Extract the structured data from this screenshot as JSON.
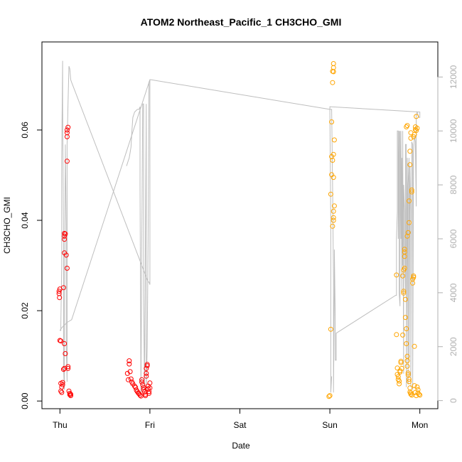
{
  "chart_data": {
    "type": "scatter",
    "title": "ATOM2 Northeast_Pacific_1 CH3CHO_GMI",
    "xlabel": "Date",
    "ylabel": "CH3CHO_GMI",
    "x_ticks": [
      {
        "label": "Thu",
        "value": 0
      },
      {
        "label": "Fri",
        "value": 1
      },
      {
        "label": "Sat",
        "value": 2
      },
      {
        "label": "Sun",
        "value": 3
      },
      {
        "label": "Mon",
        "value": 4
      }
    ],
    "xlim": [
      -0.2,
      4.2
    ],
    "ylim": [
      -0.0017,
      0.0795
    ],
    "y_ticks": [
      "0.00",
      "0.02",
      "0.04",
      "0.06"
    ],
    "y_tick_values": [
      0,
      0.02,
      0.04,
      0.06
    ],
    "y2lim": [
      -300,
      13300
    ],
    "y2_ticks": [
      "0",
      "2000",
      "4000",
      "6000",
      "8000",
      "10000",
      "12000"
    ],
    "y2_tick_values": [
      0,
      2000,
      4000,
      6000,
      8000,
      10000,
      12000
    ],
    "colors": {
      "series_red": "#ff0000",
      "series_orange": "#ffa500",
      "altitude": "#bebebe"
    },
    "series": [
      {
        "color": "#ff0000",
        "points": [
          [
            -0.01,
            0.0243
          ],
          [
            -0.01,
            0.0238
          ],
          [
            0.0,
            0.0248
          ],
          [
            -0.005,
            0.0229
          ],
          [
            0.0,
            0.0134
          ],
          [
            0.01,
            0.0133
          ],
          [
            0.01,
            0.0039
          ],
          [
            0.02,
            0.0031
          ],
          [
            0.01,
            0.0022
          ],
          [
            0.02,
            0.0019
          ],
          [
            0.03,
            0.0036
          ],
          [
            0.03,
            0.0041
          ],
          [
            0.04,
            0.007
          ],
          [
            0.05,
            0.0072
          ],
          [
            0.05,
            0.0127
          ],
          [
            0.06,
            0.0105
          ],
          [
            0.04,
            0.0251
          ],
          [
            0.05,
            0.0328
          ],
          [
            0.05,
            0.0365
          ],
          [
            0.05,
            0.0371
          ],
          [
            0.05,
            0.0358
          ],
          [
            0.06,
            0.037
          ],
          [
            0.07,
            0.0323
          ],
          [
            0.08,
            0.0294
          ],
          [
            0.08,
            0.0531
          ],
          [
            0.08,
            0.0585
          ],
          [
            0.08,
            0.0594
          ],
          [
            0.08,
            0.06
          ],
          [
            0.09,
            0.0606
          ],
          [
            0.09,
            0.0072
          ],
          [
            0.09,
            0.0076
          ],
          [
            0.1,
            0.0022
          ],
          [
            0.11,
            0.0017
          ],
          [
            0.11,
            0.0014
          ],
          [
            0.12,
            0.0012
          ],
          [
            0.12,
            0.0015
          ],
          [
            0.75,
            0.0061
          ],
          [
            0.76,
            0.0047
          ],
          [
            0.77,
            0.0082
          ],
          [
            0.77,
            0.0089
          ],
          [
            0.78,
            0.0065
          ],
          [
            0.79,
            0.0049
          ],
          [
            0.8,
            0.0042
          ],
          [
            0.81,
            0.0038
          ],
          [
            0.83,
            0.0033
          ],
          [
            0.84,
            0.003
          ],
          [
            0.85,
            0.0024
          ],
          [
            0.86,
            0.0021
          ],
          [
            0.87,
            0.0018
          ],
          [
            0.88,
            0.0016
          ],
          [
            0.89,
            0.0013
          ],
          [
            0.9,
            0.0011
          ],
          [
            0.91,
            0.0047
          ],
          [
            0.91,
            0.0042
          ],
          [
            0.92,
            0.0036
          ],
          [
            0.93,
            0.003
          ],
          [
            0.93,
            0.0025
          ],
          [
            0.94,
            0.002
          ],
          [
            0.95,
            0.0015
          ],
          [
            0.95,
            0.0012
          ],
          [
            0.96,
            0.0055
          ],
          [
            0.96,
            0.0061
          ],
          [
            0.96,
            0.0072
          ],
          [
            0.97,
            0.0078
          ],
          [
            0.97,
            0.0081
          ],
          [
            0.98,
            0.0033
          ],
          [
            0.98,
            0.0027
          ],
          [
            0.99,
            0.0021
          ],
          [
            0.99,
            0.0017
          ],
          [
            1.0,
            0.0029
          ],
          [
            1.0,
            0.004
          ]
        ]
      },
      {
        "color": "#ffa500",
        "points": [
          [
            2.99,
            0.001
          ],
          [
            3.0,
            0.0012
          ],
          [
            3.01,
            0.0159
          ],
          [
            3.01,
            0.0458
          ],
          [
            3.02,
            0.0501
          ],
          [
            3.02,
            0.0541
          ],
          [
            3.03,
            0.0533
          ],
          [
            3.04,
            0.0546
          ],
          [
            3.04,
            0.0495
          ],
          [
            3.03,
            0.0387
          ],
          [
            3.04,
            0.0406
          ],
          [
            3.04,
            0.04
          ],
          [
            3.04,
            0.042
          ],
          [
            3.05,
            0.0432
          ],
          [
            3.05,
            0.0578
          ],
          [
            3.02,
            0.0618
          ],
          [
            3.03,
            0.0705
          ],
          [
            3.03,
            0.073
          ],
          [
            3.04,
            0.0729
          ],
          [
            3.04,
            0.0738
          ],
          [
            3.04,
            0.0747
          ],
          [
            3.74,
            0.0279
          ],
          [
            3.74,
            0.0147
          ],
          [
            3.75,
            0.0073
          ],
          [
            3.75,
            0.0059
          ],
          [
            3.76,
            0.0054
          ],
          [
            3.76,
            0.0048
          ],
          [
            3.77,
            0.0044
          ],
          [
            3.77,
            0.0038
          ],
          [
            3.78,
            0.0064
          ],
          [
            3.78,
            0.0067
          ],
          [
            3.79,
            0.0085
          ],
          [
            3.79,
            0.0088
          ],
          [
            3.8,
            0.0072
          ],
          [
            3.81,
            0.0277
          ],
          [
            3.81,
            0.0146
          ],
          [
            3.82,
            0.0239
          ],
          [
            3.82,
            0.0243
          ],
          [
            3.82,
            0.029
          ],
          [
            3.83,
            0.0294
          ],
          [
            3.83,
            0.032
          ],
          [
            3.83,
            0.033
          ],
          [
            3.83,
            0.0336
          ],
          [
            3.84,
            0.0225
          ],
          [
            3.84,
            0.0185
          ],
          [
            3.85,
            0.016
          ],
          [
            3.85,
            0.0127
          ],
          [
            3.86,
            0.0099
          ],
          [
            3.86,
            0.0089
          ],
          [
            3.86,
            0.0077
          ],
          [
            3.87,
            0.0062
          ],
          [
            3.87,
            0.0058
          ],
          [
            3.88,
            0.0048
          ],
          [
            3.88,
            0.0043
          ],
          [
            3.89,
            0.0029
          ],
          [
            3.89,
            0.002
          ],
          [
            3.9,
            0.0018
          ],
          [
            3.9,
            0.0015
          ],
          [
            3.91,
            0.0013
          ],
          [
            3.86,
            0.0365
          ],
          [
            3.87,
            0.0373
          ],
          [
            3.88,
            0.0395
          ],
          [
            3.88,
            0.0443
          ],
          [
            3.89,
            0.0523
          ],
          [
            3.89,
            0.0553
          ],
          [
            3.9,
            0.0582
          ],
          [
            3.9,
            0.0594
          ],
          [
            3.91,
            0.0467
          ],
          [
            3.91,
            0.0463
          ],
          [
            3.92,
            0.0261
          ],
          [
            3.92,
            0.027
          ],
          [
            3.93,
            0.0274
          ],
          [
            3.93,
            0.0277
          ],
          [
            3.94,
            0.0121
          ],
          [
            3.94,
            0.059
          ],
          [
            3.95,
            0.0601
          ],
          [
            3.95,
            0.0607
          ],
          [
            3.96,
            0.0599
          ],
          [
            3.96,
            0.063
          ],
          [
            3.97,
            0.0604
          ],
          [
            3.97,
            0.0031
          ],
          [
            3.98,
            0.0025
          ],
          [
            3.98,
            0.0018
          ],
          [
            3.99,
            0.0015
          ],
          [
            4.0,
            0.0013
          ],
          [
            3.94,
            0.0034
          ],
          [
            3.95,
            0.0019
          ],
          [
            3.96,
            0.0012
          ],
          [
            3.85,
            0.0607
          ],
          [
            3.86,
            0.061
          ],
          [
            3.93,
            0.0585
          ]
        ]
      }
    ],
    "altitude_series": {
      "color": "#bebebe",
      "segments": [
        [
          [
            0.0,
            2600
          ],
          [
            0.01,
            2600
          ],
          [
            0.01,
            2800
          ],
          [
            0.02,
            5000
          ],
          [
            0.02,
            9000
          ],
          [
            0.03,
            12600
          ],
          [
            0.03,
            11000
          ],
          [
            0.04,
            6000
          ],
          [
            0.04,
            1200
          ],
          [
            0.05,
            400
          ],
          [
            0.05,
            3800
          ],
          [
            0.06,
            9000
          ],
          [
            0.06,
            9500
          ],
          [
            0.07,
            6500
          ],
          [
            0.07,
            2000
          ],
          [
            0.08,
            700
          ],
          [
            0.08,
            9500
          ],
          [
            0.09,
            11000
          ],
          [
            0.1,
            12400
          ],
          [
            0.11,
            12300
          ],
          [
            0.12,
            11900
          ],
          [
            0.13,
            11800
          ],
          [
            0.98,
            4400
          ],
          [
            0.99,
            4400
          ],
          [
            1.0,
            4300
          ],
          [
            1.0,
            10500
          ],
          [
            1.0,
            11900
          ],
          [
            0.99,
            11800
          ],
          [
            0.98,
            6000
          ],
          [
            0.97,
            2000
          ],
          [
            0.96,
            400
          ],
          [
            0.96,
            11000
          ],
          [
            0.95,
            6000
          ],
          [
            0.94,
            400
          ],
          [
            0.93,
            4000
          ],
          [
            0.93,
            11000
          ],
          [
            0.92,
            11000
          ],
          [
            0.91,
            6000
          ],
          [
            0.9,
            300
          ],
          [
            0.89,
            8000
          ],
          [
            0.89,
            10900
          ],
          [
            0.88,
            10800
          ],
          [
            0.87,
            10800
          ],
          [
            0.86,
            10800
          ],
          [
            0.83,
            10700
          ],
          [
            0.81,
            10500
          ],
          [
            0.8,
            10000
          ],
          [
            0.79,
            9400
          ],
          [
            0.78,
            9200
          ],
          [
            0.77,
            9000
          ],
          [
            0.76,
            8900
          ],
          [
            0.75,
            8800
          ],
          [
            0.74,
            8700
          ]
        ],
        [
          [
            0.0,
            2600
          ],
          [
            0.02,
            2700
          ],
          [
            0.05,
            2800
          ],
          [
            0.08,
            2900
          ],
          [
            0.13,
            3000
          ],
          [
            1.0,
            11900
          ],
          [
            1.01,
            11900
          ],
          [
            3.0,
            10800
          ],
          [
            3.02,
            10800
          ],
          [
            3.03,
            8000
          ],
          [
            3.04,
            4500
          ],
          [
            3.04,
            300
          ],
          [
            3.05,
            4000
          ],
          [
            3.05,
            5600
          ],
          [
            3.06,
            3000
          ],
          [
            3.06,
            1500
          ],
          [
            3.07,
            1500
          ],
          [
            3.07,
            2500
          ],
          [
            3.73,
            3900
          ],
          [
            3.74,
            3900
          ],
          [
            3.74,
            6000
          ],
          [
            3.75,
            7000
          ],
          [
            3.75,
            10000
          ],
          [
            3.76,
            10000
          ],
          [
            3.76,
            6000
          ],
          [
            3.77,
            10000
          ],
          [
            3.77,
            4000
          ],
          [
            3.78,
            3500
          ],
          [
            3.78,
            10000
          ],
          [
            3.79,
            6000
          ],
          [
            3.79,
            10000
          ],
          [
            3.8,
            4000
          ],
          [
            3.8,
            9000
          ],
          [
            3.81,
            5000
          ],
          [
            3.81,
            10000
          ],
          [
            3.82,
            1000
          ],
          [
            3.82,
            8000
          ],
          [
            3.83,
            7000
          ],
          [
            3.83,
            6000
          ],
          [
            3.84,
            4000
          ],
          [
            3.84,
            9500
          ],
          [
            3.85,
            9500
          ],
          [
            3.85,
            500
          ],
          [
            3.86,
            9000
          ],
          [
            3.87,
            600
          ],
          [
            3.87,
            8000
          ],
          [
            3.88,
            9000
          ],
          [
            3.88,
            1500
          ],
          [
            3.89,
            8700
          ],
          [
            3.9,
            7000
          ],
          [
            3.9,
            500
          ],
          [
            3.91,
            9600
          ],
          [
            3.92,
            9500
          ],
          [
            3.92,
            400
          ],
          [
            3.93,
            9200
          ],
          [
            3.94,
            9800
          ],
          [
            3.95,
            9600
          ],
          [
            3.96,
            7200
          ],
          [
            3.96,
            10600
          ],
          [
            3.97,
            10700
          ],
          [
            3.98,
            10600
          ],
          [
            3.99,
            10500
          ],
          [
            4.0,
            10500
          ],
          [
            4.0,
            10700
          ],
          [
            3.0,
            10900
          ],
          [
            3.0,
            10700
          ],
          [
            3.01,
            6500
          ],
          [
            3.01,
            300
          ],
          [
            3.02,
            900
          ]
        ]
      ]
    }
  }
}
